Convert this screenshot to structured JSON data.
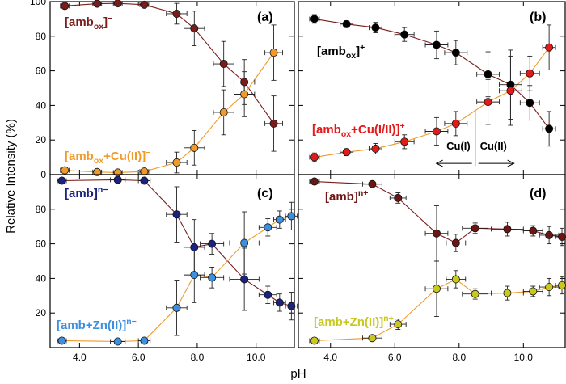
{
  "figure": {
    "xlabel": "pH",
    "ylabel": "Relative Intensity (%)"
  },
  "chart_data": [
    {
      "panel": "(a)",
      "type": "scatter",
      "xlabel": "pH",
      "ylabel": "Relative Intensity (%)",
      "xlim": [
        3.0,
        11.3
      ],
      "ylim": [
        0,
        100
      ],
      "yticks": [
        0,
        20,
        40,
        60,
        80,
        100
      ],
      "ytick_labels": [
        "0",
        "20",
        "40",
        "60",
        "80",
        "100"
      ],
      "xticks": [
        4.0,
        6.0,
        8.0,
        10.0
      ],
      "xtick_labels": [],
      "series": [
        {
          "name": "[amb_ox]^-",
          "label_main": "[amb",
          "label_sub": "ox",
          "label_sup": "]−",
          "color": "#7a1c1c",
          "line_color": "#7a1c1c",
          "x": [
            3.5,
            4.6,
            5.3,
            6.2,
            7.3,
            7.9,
            8.9,
            9.6,
            10.6
          ],
          "y": [
            97.5,
            98.8,
            99.0,
            98.2,
            93.0,
            84.5,
            64.0,
            53.5,
            29.5
          ],
          "xerr": [
            0.15,
            0.15,
            0.15,
            0.15,
            0.35,
            0.35,
            0.35,
            0.35,
            0.3
          ],
          "yerr": [
            1.5,
            1.2,
            1.2,
            1.5,
            6.0,
            10.0,
            13.0,
            13.0,
            16.0
          ]
        },
        {
          "name": "[amb_ox+Cu(II)]^-",
          "label_main": "[amb",
          "label_sub": "ox",
          "label_sup": "+Cu(II)]−",
          "color": "#f09a2c",
          "line_color": "#f09a2c",
          "x": [
            3.5,
            4.6,
            5.3,
            6.2,
            7.3,
            7.9,
            8.9,
            9.6,
            10.6
          ],
          "y": [
            2.5,
            1.5,
            1.2,
            1.8,
            7.0,
            15.5,
            36.0,
            46.5,
            70.5
          ],
          "xerr": [
            0.15,
            0.15,
            0.15,
            0.15,
            0.35,
            0.35,
            0.35,
            0.35,
            0.3
          ],
          "yerr": [
            1.5,
            1.2,
            1.2,
            1.5,
            6.0,
            10.0,
            13.0,
            13.0,
            16.0
          ]
        }
      ]
    },
    {
      "panel": "(b)",
      "type": "scatter",
      "xlabel": "pH",
      "ylabel": "",
      "xlim": [
        3.0,
        11.3
      ],
      "ylim": [
        0,
        100
      ],
      "xticks": [
        4.0,
        6.0,
        8.0,
        10.0
      ],
      "xtick_labels": [],
      "annotation_left": "Cu(I)",
      "annotation_right": "Cu(II)",
      "divider_ph": 8.5,
      "series": [
        {
          "name": "[amb_ox]^+",
          "label_main": "[amb",
          "label_sub": "ox",
          "label_sup": "]+",
          "color": "#000000",
          "line_color": "#7a1c1c",
          "x": [
            3.5,
            4.5,
            5.4,
            6.3,
            7.3,
            7.9,
            8.9,
            9.6,
            10.2,
            10.8
          ],
          "y": [
            90.0,
            87.0,
            85.0,
            81.0,
            75.0,
            70.5,
            58.0,
            52.0,
            41.5,
            26.5
          ],
          "xerr": [
            0.15,
            0.2,
            0.2,
            0.3,
            0.35,
            0.35,
            0.35,
            0.35,
            0.3,
            0.2
          ],
          "yerr": [
            2.5,
            2.0,
            3.0,
            4.0,
            8.0,
            7.0,
            13.0,
            20.0,
            10.0,
            10.0
          ]
        },
        {
          "name": "[amb_ox+Cu(I/II)]^+",
          "label_main": "[amb",
          "label_sub": "ox",
          "label_sup": "+Cu(I/II)]+",
          "color": "#e31a1c",
          "line_color": "#f09a2c",
          "x": [
            3.5,
            4.5,
            5.4,
            6.3,
            7.3,
            7.9,
            8.9,
            9.6,
            10.2,
            10.8
          ],
          "y": [
            10.0,
            13.0,
            15.0,
            19.0,
            25.0,
            29.5,
            42.0,
            48.5,
            58.5,
            73.5
          ],
          "xerr": [
            0.15,
            0.2,
            0.2,
            0.3,
            0.35,
            0.35,
            0.35,
            0.35,
            0.3,
            0.2
          ],
          "yerr": [
            2.5,
            2.0,
            3.0,
            4.0,
            8.0,
            7.0,
            13.0,
            20.0,
            10.0,
            13.0
          ]
        }
      ]
    },
    {
      "panel": "(c)",
      "type": "scatter",
      "xlabel": "pH",
      "ylabel": "Relative Intensity (%)",
      "xlim": [
        3.0,
        11.3
      ],
      "ylim": [
        0,
        100
      ],
      "yticks": [
        20,
        40,
        60,
        80
      ],
      "ytick_labels": [
        "20",
        "40",
        "60",
        "80"
      ],
      "xticks": [
        4.0,
        6.0,
        8.0,
        10.0
      ],
      "xtick_labels": [
        "4.0",
        "6.0",
        "8.0",
        "10.0"
      ],
      "series": [
        {
          "name": "[amb]^n-",
          "label_main": "[amb]",
          "label_sub": "",
          "label_sup": "n−",
          "color": "#1a237e",
          "line_color": "#7a1c1c",
          "x": [
            3.4,
            5.3,
            6.2,
            7.3,
            7.9,
            8.5,
            9.6,
            10.4,
            10.8,
            11.2
          ],
          "y": [
            96.5,
            97.0,
            96.5,
            77.0,
            58.0,
            60.0,
            39.5,
            30.5,
            26.0,
            24.0
          ],
          "xerr": [
            0.15,
            0.25,
            0.2,
            0.35,
            0.35,
            0.4,
            0.5,
            0.3,
            0.2,
            0.2
          ],
          "yerr": [
            1.5,
            1.5,
            1.5,
            16.0,
            16.0,
            6.0,
            18.0,
            5.0,
            5.0,
            8.0
          ]
        },
        {
          "name": "[amb+Zn(II)]^n-",
          "label_main": "[amb+Zn(II)]",
          "label_sub": "",
          "label_sup": "n−",
          "color": "#3d8fe0",
          "line_color": "#f09a2c",
          "x": [
            3.4,
            5.3,
            6.2,
            7.3,
            7.9,
            8.5,
            9.6,
            10.4,
            10.8,
            11.2
          ],
          "y": [
            4.0,
            3.5,
            4.0,
            23.0,
            42.0,
            40.5,
            60.5,
            69.5,
            74.0,
            76.0
          ],
          "xerr": [
            0.15,
            0.25,
            0.2,
            0.35,
            0.35,
            0.4,
            0.5,
            0.3,
            0.2,
            0.2
          ],
          "yerr": [
            1.5,
            1.5,
            1.5,
            16.0,
            16.0,
            6.0,
            18.0,
            5.0,
            5.0,
            8.0
          ]
        }
      ]
    },
    {
      "panel": "(d)",
      "type": "scatter",
      "xlabel": "pH",
      "ylabel": "",
      "xlim": [
        3.0,
        11.3
      ],
      "ylim": [
        0,
        100
      ],
      "xticks": [
        4.0,
        6.0,
        8.0,
        10.0
      ],
      "xtick_labels": [
        "4.0",
        "6.0",
        "8.0",
        "10.0"
      ],
      "series": [
        {
          "name": "[amb]^n+",
          "label_main": "[amb]",
          "label_sub": "",
          "label_sup": "n+",
          "color": "#6b1515",
          "line_color": "#7a1c1c",
          "x": [
            3.5,
            5.3,
            6.1,
            7.3,
            7.9,
            8.5,
            9.5,
            10.3,
            10.8,
            11.2
          ],
          "y": [
            96.0,
            94.5,
            86.5,
            66.0,
            60.5,
            69.0,
            68.5,
            67.5,
            65.0,
            64.0
          ],
          "xerr": [
            0.15,
            0.3,
            0.25,
            0.35,
            0.3,
            0.4,
            0.5,
            0.3,
            0.3,
            0.2
          ],
          "yerr": [
            1.5,
            1.5,
            3.0,
            16.0,
            5.0,
            3.0,
            4.0,
            3.0,
            5.0,
            5.0
          ]
        },
        {
          "name": "[amb+Zn(II)]^n+",
          "label_main": "[amb+Zn(II)]",
          "label_sub": "",
          "label_sup": "n+",
          "color": "#c8c820",
          "line_color": "#f09a2c",
          "x": [
            3.5,
            5.3,
            6.1,
            7.3,
            7.9,
            8.5,
            9.5,
            10.3,
            10.8,
            11.2
          ],
          "y": [
            4.0,
            5.5,
            13.5,
            34.0,
            39.5,
            31.0,
            31.5,
            32.5,
            35.0,
            36.0
          ],
          "xerr": [
            0.15,
            0.3,
            0.25,
            0.35,
            0.3,
            0.4,
            0.5,
            0.3,
            0.3,
            0.2
          ],
          "yerr": [
            1.5,
            1.5,
            3.0,
            16.0,
            5.0,
            3.0,
            4.0,
            3.0,
            5.0,
            5.0
          ]
        }
      ]
    }
  ]
}
